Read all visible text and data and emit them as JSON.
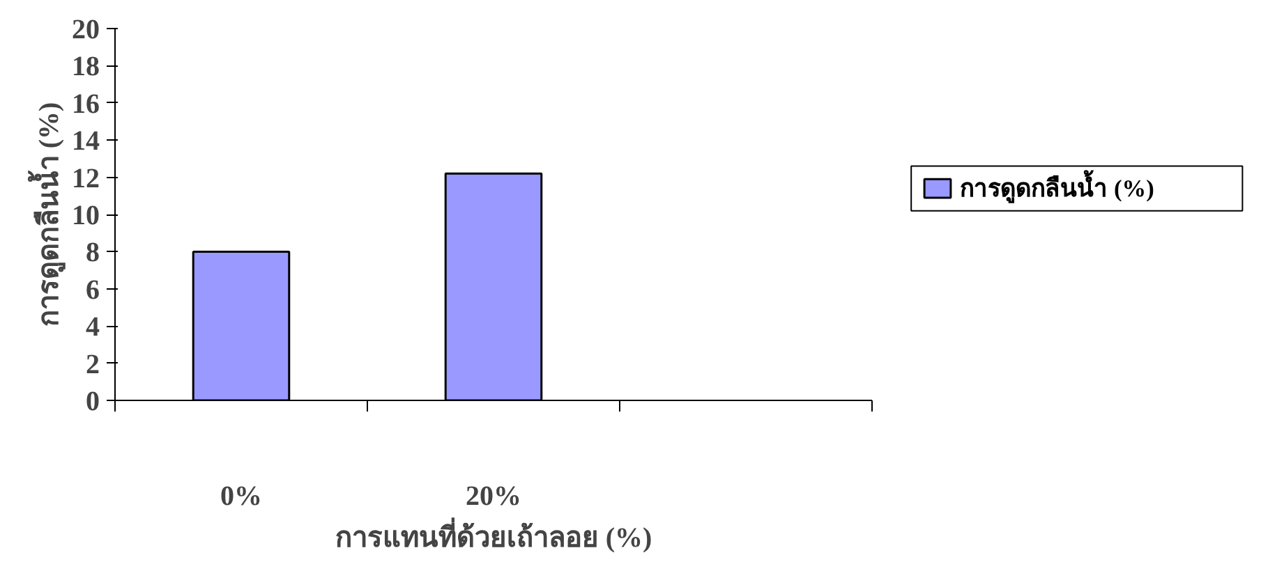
{
  "chart_data": {
    "type": "bar",
    "xlabel": "การแทนที่ด้วยเถ้าลอย (%)",
    "ylabel": "การดูดกลืนน้ำ (%)",
    "categories": [
      "0%",
      "20%",
      null
    ],
    "series": [
      {
        "name": "การดูดกลืนน้ำ (%)",
        "color": "#9999ff",
        "values": [
          8,
          12.2,
          null
        ]
      }
    ],
    "ylim": [
      0,
      20
    ],
    "yticks": [
      0,
      2,
      4,
      6,
      8,
      10,
      12,
      14,
      16,
      18,
      20
    ],
    "grid": false,
    "legend": "right"
  }
}
